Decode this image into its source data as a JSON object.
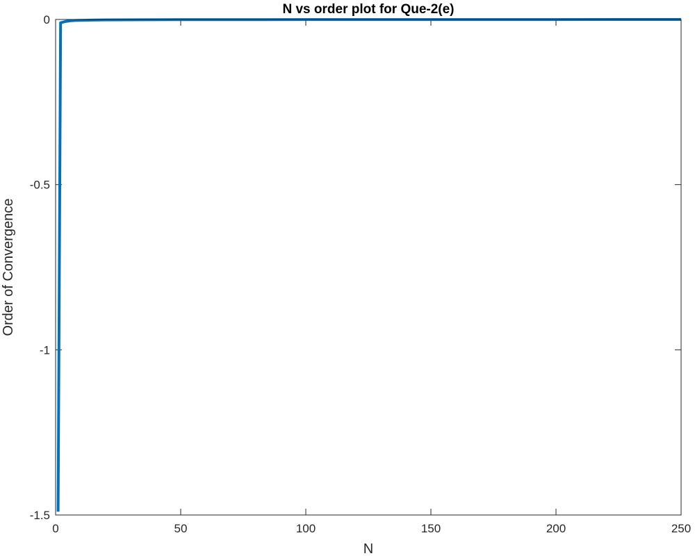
{
  "chart_data": {
    "type": "line",
    "title": "N vs order plot for Que-2(e)",
    "xlabel": "N",
    "ylabel": "Order of Convergence",
    "xlim": [
      0,
      250
    ],
    "ylim": [
      -1.5,
      0
    ],
    "xticks": [
      0,
      50,
      100,
      150,
      200,
      250
    ],
    "yticks": [
      -1.5,
      -1,
      -0.5,
      0
    ],
    "xtick_labels": [
      "0",
      "50",
      "100",
      "150",
      "200",
      "250"
    ],
    "ytick_labels": [
      "-1.5",
      "-1",
      "-0.5",
      "0"
    ],
    "grid": false,
    "box": true,
    "series": [
      {
        "color": "#0072BD",
        "x": [
          1,
          2,
          3,
          4,
          5,
          6,
          8,
          10,
          15,
          20,
          30,
          50,
          100,
          150,
          200,
          250
        ],
        "y": [
          -1.49,
          -0.01,
          -0.008,
          -0.006,
          -0.005,
          -0.004,
          -0.003,
          -0.0025,
          -0.0018,
          -0.0014,
          -0.001,
          -0.0006,
          -0.0003,
          -0.0002,
          -0.00015,
          -0.0001
        ]
      }
    ]
  }
}
